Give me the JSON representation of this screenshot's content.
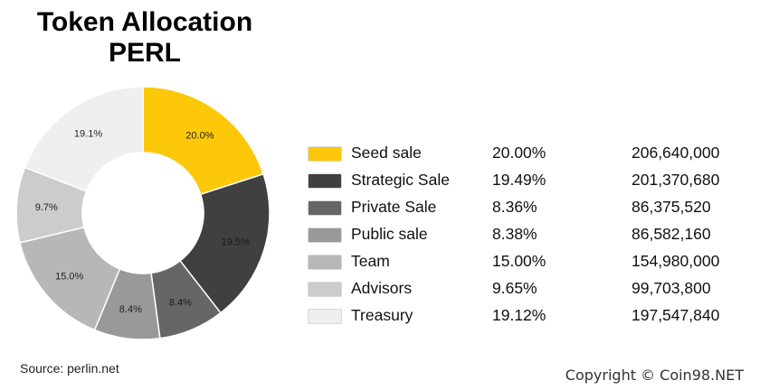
{
  "header": {
    "title_line1": "Token Allocation",
    "title_line2": "PERL"
  },
  "chart_data": {
    "type": "pie",
    "style": "donut",
    "categories": [
      "Seed sale",
      "Strategic Sale",
      "Private Sale",
      "Public sale",
      "Team",
      "Advisors",
      "Treasury"
    ],
    "values": [
      20.0,
      19.49,
      8.36,
      8.38,
      15.0,
      9.65,
      19.12
    ],
    "slice_labels": [
      "20.0%",
      "19.5%",
      "8.4%",
      "8.4%",
      "15.0%",
      "9.7%",
      "19.1%"
    ],
    "percent_labels": [
      "20.00%",
      "19.49%",
      "8.36%",
      "8.38%",
      "15.00%",
      "9.65%",
      "19.12%"
    ],
    "token_amounts": [
      "206,640,000",
      "201,370,680",
      "86,375,520",
      "86,582,160",
      "154,980,000",
      "99,703,800",
      "197,547,840"
    ],
    "colors": [
      "#fcc809",
      "#404040",
      "#666666",
      "#999999",
      "#b7b7b7",
      "#cccccc",
      "#efefef"
    ],
    "legend_position": "right"
  },
  "footer": {
    "source": "Source: perlin.net",
    "copyright": "Copyright © Coin98.NET"
  }
}
